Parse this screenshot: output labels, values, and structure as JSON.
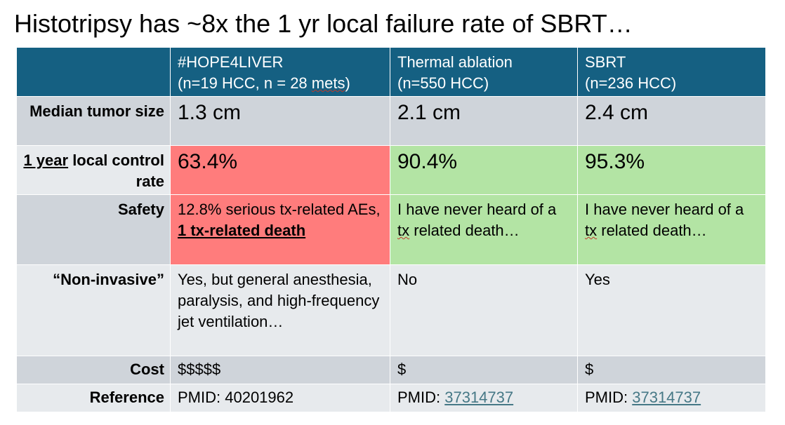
{
  "title": "Histotripsy has ~8x the 1 yr local failure rate of SBRT…",
  "colors": {
    "header_bg": "#156082",
    "row_dark": "#cfd4da",
    "row_light": "#e7eaed",
    "bad": "#ff7c7c",
    "good": "#b3e4a4",
    "link": "#467886"
  },
  "table": {
    "columns": [
      {
        "line1": "#HOPE4LIVER",
        "line2_a": "(n=19 HCC, n = 28 ",
        "line2_b": "mets",
        "line2_c": ")"
      },
      {
        "line1": "Thermal ablation",
        "line2": "(n=550 HCC)"
      },
      {
        "line1": "SBRT",
        "line2": "(n=236 HCC)"
      }
    ],
    "rows": {
      "size": {
        "label": "Median tumor size",
        "values": [
          "1.3 cm",
          "2.1 cm",
          "2.4 cm"
        ]
      },
      "control": {
        "label_a": "1 year",
        "label_b": " local control rate",
        "values": [
          "63.4%",
          "90.4%",
          "95.3%"
        ]
      },
      "safety": {
        "label": "Safety",
        "hope_a": "12.8% serious tx-related AEs, ",
        "hope_b": "1 tx-related death",
        "thermal_a": "I have never heard of a ",
        "thermal_b": "tx",
        "thermal_c": " related death…",
        "sbrt_a": "I have never heard of a ",
        "sbrt_b": "tx",
        "sbrt_c": " related death…"
      },
      "noninvasive": {
        "label": "“Non-invasive”",
        "values": [
          "Yes, but general anesthesia, paralysis, and high-frequency jet ventilation…",
          "No",
          "Yes"
        ]
      },
      "cost": {
        "label": "Cost",
        "values": [
          "$$$$$",
          "$",
          "$"
        ]
      },
      "reference": {
        "label": "Reference",
        "prefix": "PMID: ",
        "values": [
          "40201962",
          "37314737",
          "37314737"
        ]
      }
    }
  }
}
